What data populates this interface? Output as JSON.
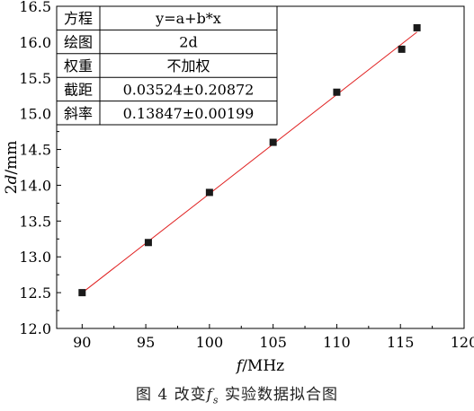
{
  "chart_data": {
    "type": "scatter",
    "xlabel_italic": "f",
    "xlabel_rest": "/MHz",
    "ylabel_prefix": "2",
    "ylabel_italic": "d",
    "ylabel_rest": "/mm",
    "xlim": [
      88,
      120
    ],
    "ylim": [
      12.0,
      16.5
    ],
    "xticks": [
      90,
      95,
      100,
      105,
      110,
      115,
      120
    ],
    "yticks": [
      "12.0",
      "12.5",
      "13.0",
      "13.5",
      "14.0",
      "14.5",
      "15.0",
      "15.5",
      "16.0",
      "16.5"
    ],
    "points": [
      {
        "x": 90.0,
        "y": 12.5
      },
      {
        "x": 95.2,
        "y": 13.2
      },
      {
        "x": 100.0,
        "y": 13.9
      },
      {
        "x": 105.0,
        "y": 14.6
      },
      {
        "x": 110.0,
        "y": 15.3
      },
      {
        "x": 115.1,
        "y": 15.9
      },
      {
        "x": 116.3,
        "y": 16.2
      }
    ],
    "fit": {
      "intercept": 0.03524,
      "slope": 0.13847,
      "x_range": [
        90.0,
        116.3
      ],
      "color": "#e02020"
    },
    "marker_color": "#1a1a1a",
    "fit_table": [
      {
        "label": "方程",
        "value": "y=a+b*x"
      },
      {
        "label": "绘图",
        "value": "2d"
      },
      {
        "label": "权重",
        "value": "不加权"
      },
      {
        "label": "截距",
        "value": "0.03524±0.20872"
      },
      {
        "label": "斜率",
        "value": "0.13847±0.00199"
      }
    ]
  },
  "caption": {
    "prefix": "图 4   改变",
    "italic": "f",
    "sub": "s",
    "suffix": " 实验数据拟合图"
  }
}
